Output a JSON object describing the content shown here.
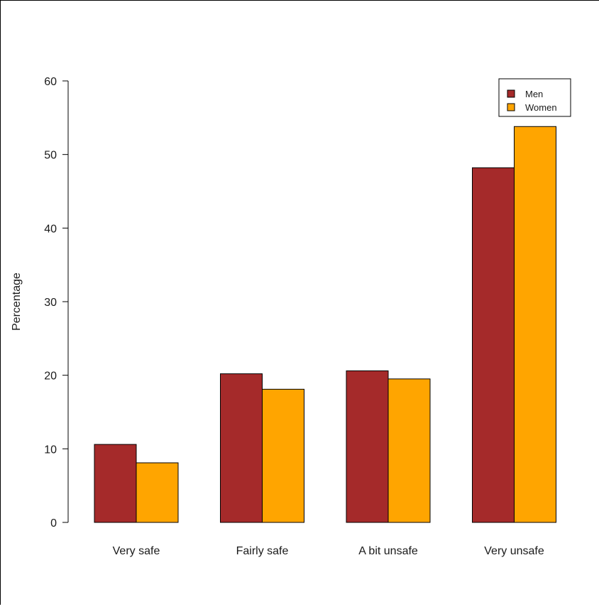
{
  "chart_data": {
    "type": "bar",
    "title": "",
    "xlabel": "",
    "ylabel": "Percentage",
    "ylim": [
      0,
      60
    ],
    "yticks": [
      0,
      10,
      20,
      30,
      40,
      50,
      60
    ],
    "categories": [
      "Very safe",
      "Fairly safe",
      "A bit unsafe",
      "Very unsafe"
    ],
    "series": [
      {
        "name": "Men",
        "values": [
          10.6,
          20.2,
          20.6,
          48.2
        ],
        "color": "#a52a2a"
      },
      {
        "name": "Women",
        "values": [
          8.1,
          18.1,
          19.5,
          53.8
        ],
        "color": "#ffa500"
      }
    ],
    "legend_position": "top-right",
    "grid": false
  }
}
